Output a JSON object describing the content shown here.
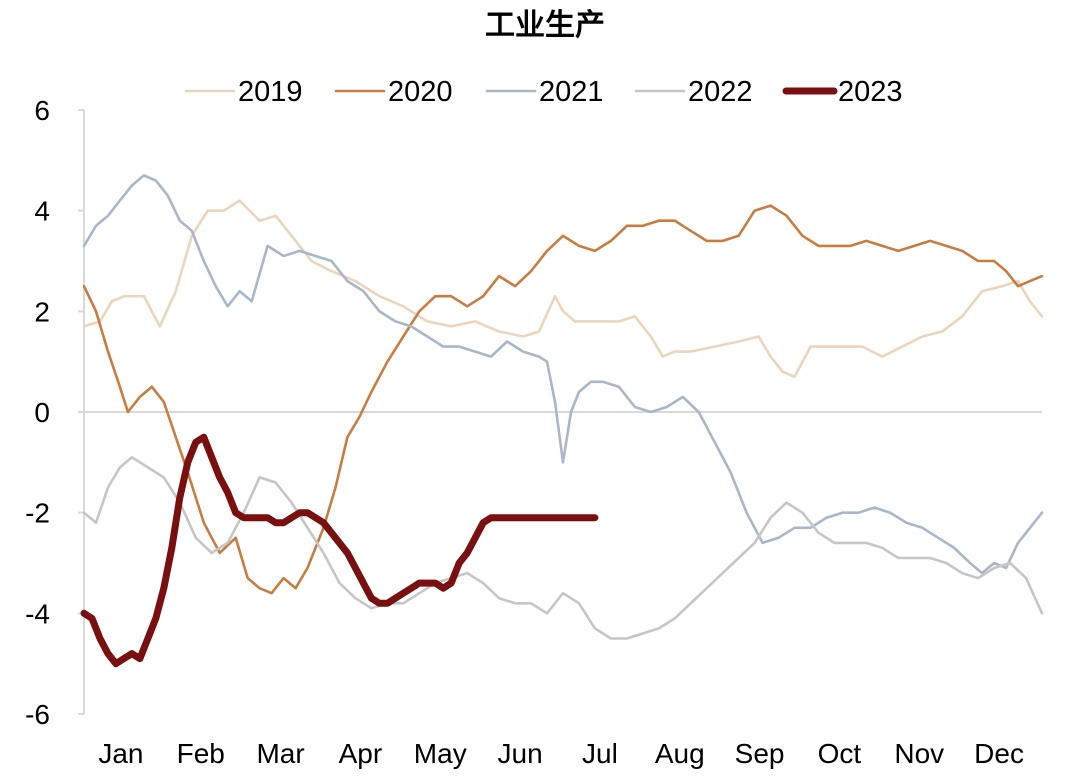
{
  "chart_data": {
    "type": "line",
    "title": "工业生产",
    "xlabel": "",
    "ylabel": "",
    "ylim": [
      -6,
      6
    ],
    "yticks": [
      6,
      4,
      2,
      0,
      -2,
      -4,
      -6
    ],
    "xlim": [
      0,
      12
    ],
    "months": [
      "Jan",
      "Feb",
      "Mar",
      "Apr",
      "May",
      "Jun",
      "Jul",
      "Aug",
      "Sep",
      "Oct",
      "Nov",
      "Dec"
    ],
    "legend_position": "top",
    "zero_line": true,
    "series": [
      {
        "name": "2019",
        "color": "#ecd5bd",
        "width": "thin",
        "x": [
          0.0,
          0.2,
          0.35,
          0.5,
          0.75,
          0.95,
          1.15,
          1.35,
          1.55,
          1.75,
          1.95,
          2.2,
          2.4,
          2.6,
          2.85,
          3.1,
          3.4,
          3.7,
          4.0,
          4.3,
          4.6,
          4.9,
          5.2,
          5.5,
          5.7,
          5.9,
          6.0,
          6.15,
          6.4,
          6.7,
          6.9,
          7.1,
          7.25,
          7.4,
          7.6,
          7.9,
          8.2,
          8.45,
          8.6,
          8.75,
          8.9,
          9.1,
          9.3,
          9.5,
          9.75,
          10.0,
          10.25,
          10.5,
          10.75,
          11.0,
          11.25,
          11.5,
          11.7,
          11.85,
          12.0
        ],
        "y": [
          1.7,
          1.8,
          2.2,
          2.3,
          2.3,
          1.7,
          2.4,
          3.5,
          4.0,
          4.0,
          4.2,
          3.8,
          3.9,
          3.5,
          3.0,
          2.8,
          2.6,
          2.3,
          2.1,
          1.8,
          1.7,
          1.8,
          1.6,
          1.5,
          1.6,
          2.3,
          2.0,
          1.8,
          1.8,
          1.8,
          1.9,
          1.5,
          1.1,
          1.2,
          1.2,
          1.3,
          1.4,
          1.5,
          1.1,
          0.8,
          0.7,
          1.3,
          1.3,
          1.3,
          1.3,
          1.1,
          1.3,
          1.5,
          1.6,
          1.9,
          2.4,
          2.5,
          2.6,
          2.2,
          1.9
        ]
      },
      {
        "name": "2020",
        "color": "#c87d40",
        "width": "thin",
        "x": [
          0.0,
          0.15,
          0.3,
          0.45,
          0.55,
          0.7,
          0.85,
          1.0,
          1.15,
          1.3,
          1.5,
          1.7,
          1.9,
          2.05,
          2.2,
          2.35,
          2.5,
          2.65,
          2.8,
          3.0,
          3.15,
          3.3,
          3.45,
          3.6,
          3.8,
          4.0,
          4.2,
          4.4,
          4.6,
          4.8,
          5.0,
          5.2,
          5.4,
          5.6,
          5.8,
          6.0,
          6.2,
          6.4,
          6.6,
          6.8,
          7.0,
          7.2,
          7.4,
          7.6,
          7.8,
          8.0,
          8.2,
          8.4,
          8.6,
          8.8,
          9.0,
          9.2,
          9.4,
          9.6,
          9.8,
          10.0,
          10.2,
          10.4,
          10.6,
          10.8,
          11.0,
          11.2,
          11.4,
          11.55,
          11.7,
          11.85,
          12.0
        ],
        "y": [
          2.5,
          2.0,
          1.2,
          0.5,
          0.0,
          0.3,
          0.5,
          0.2,
          -0.5,
          -1.2,
          -2.2,
          -2.8,
          -2.5,
          -3.3,
          -3.5,
          -3.6,
          -3.3,
          -3.5,
          -3.1,
          -2.3,
          -1.5,
          -0.5,
          -0.1,
          0.4,
          1.0,
          1.5,
          2.0,
          2.3,
          2.3,
          2.1,
          2.3,
          2.7,
          2.5,
          2.8,
          3.2,
          3.5,
          3.3,
          3.2,
          3.4,
          3.7,
          3.7,
          3.8,
          3.8,
          3.6,
          3.4,
          3.4,
          3.5,
          4.0,
          4.1,
          3.9,
          3.5,
          3.3,
          3.3,
          3.3,
          3.4,
          3.3,
          3.2,
          3.3,
          3.4,
          3.3,
          3.2,
          3.0,
          3.0,
          2.8,
          2.5,
          2.6,
          2.7
        ]
      },
      {
        "name": "2021",
        "color": "#a9b7c9",
        "width": "thin",
        "x": [
          0.0,
          0.15,
          0.3,
          0.45,
          0.6,
          0.75,
          0.9,
          1.05,
          1.2,
          1.35,
          1.5,
          1.65,
          1.8,
          1.95,
          2.1,
          2.3,
          2.5,
          2.7,
          2.9,
          3.1,
          3.3,
          3.5,
          3.7,
          3.9,
          4.1,
          4.3,
          4.5,
          4.7,
          4.9,
          5.1,
          5.3,
          5.5,
          5.7,
          5.8,
          5.9,
          6.0,
          6.1,
          6.2,
          6.35,
          6.5,
          6.7,
          6.9,
          7.1,
          7.3,
          7.5,
          7.7,
          7.9,
          8.1,
          8.3,
          8.5,
          8.7,
          8.9,
          9.1,
          9.3,
          9.5,
          9.7,
          9.9,
          10.1,
          10.3,
          10.5,
          10.7,
          10.9,
          11.1,
          11.25,
          11.4,
          11.55,
          11.7,
          11.85,
          12.0
        ],
        "y": [
          3.3,
          3.7,
          3.9,
          4.2,
          4.5,
          4.7,
          4.6,
          4.3,
          3.8,
          3.6,
          3.0,
          2.5,
          2.1,
          2.4,
          2.2,
          3.3,
          3.1,
          3.2,
          3.1,
          3.0,
          2.6,
          2.4,
          2.0,
          1.8,
          1.7,
          1.5,
          1.3,
          1.3,
          1.2,
          1.1,
          1.4,
          1.2,
          1.1,
          1.0,
          0.2,
          -1.0,
          0.0,
          0.4,
          0.6,
          0.6,
          0.5,
          0.1,
          0.0,
          0.1,
          0.3,
          0.0,
          -0.6,
          -1.2,
          -2.0,
          -2.6,
          -2.5,
          -2.3,
          -2.3,
          -2.1,
          -2.0,
          -2.0,
          -1.9,
          -2.0,
          -2.2,
          -2.3,
          -2.5,
          -2.7,
          -3.0,
          -3.2,
          -3.0,
          -3.1,
          -2.6,
          -2.3,
          -2.0
        ]
      },
      {
        "name": "2022",
        "color": "#c6c6c6",
        "width": "thin",
        "x": [
          0.0,
          0.15,
          0.3,
          0.45,
          0.6,
          0.8,
          1.0,
          1.2,
          1.4,
          1.6,
          1.8,
          2.0,
          2.2,
          2.4,
          2.6,
          2.8,
          3.0,
          3.2,
          3.4,
          3.6,
          3.8,
          4.0,
          4.2,
          4.4,
          4.6,
          4.8,
          5.0,
          5.2,
          5.4,
          5.6,
          5.8,
          6.0,
          6.2,
          6.4,
          6.6,
          6.8,
          7.0,
          7.2,
          7.4,
          7.6,
          7.8,
          8.0,
          8.2,
          8.4,
          8.6,
          8.8,
          9.0,
          9.2,
          9.4,
          9.6,
          9.8,
          10.0,
          10.2,
          10.4,
          10.6,
          10.8,
          11.0,
          11.2,
          11.4,
          11.6,
          11.8,
          12.0
        ],
        "y": [
          -2.0,
          -2.2,
          -1.5,
          -1.1,
          -0.9,
          -1.1,
          -1.3,
          -1.8,
          -2.5,
          -2.8,
          -2.6,
          -2.0,
          -1.3,
          -1.4,
          -1.8,
          -2.3,
          -2.8,
          -3.4,
          -3.7,
          -3.9,
          -3.8,
          -3.8,
          -3.6,
          -3.4,
          -3.3,
          -3.2,
          -3.4,
          -3.7,
          -3.8,
          -3.8,
          -4.0,
          -3.6,
          -3.8,
          -4.3,
          -4.5,
          -4.5,
          -4.4,
          -4.3,
          -4.1,
          -3.8,
          -3.5,
          -3.2,
          -2.9,
          -2.6,
          -2.1,
          -1.8,
          -2.0,
          -2.4,
          -2.6,
          -2.6,
          -2.6,
          -2.7,
          -2.9,
          -2.9,
          -2.9,
          -3.0,
          -3.2,
          -3.3,
          -3.1,
          -3.0,
          -3.3,
          -4.0
        ]
      },
      {
        "name": "2023",
        "color": "#7a0f0f",
        "width": "thick",
        "x": [
          0.0,
          0.1,
          0.2,
          0.3,
          0.4,
          0.5,
          0.6,
          0.7,
          0.8,
          0.9,
          1.0,
          1.1,
          1.2,
          1.3,
          1.4,
          1.5,
          1.6,
          1.7,
          1.8,
          1.9,
          2.0,
          2.1,
          2.2,
          2.3,
          2.4,
          2.5,
          2.6,
          2.7,
          2.8,
          2.9,
          3.0,
          3.1,
          3.2,
          3.3,
          3.4,
          3.5,
          3.6,
          3.7,
          3.8,
          3.9,
          4.0,
          4.1,
          4.2,
          4.3,
          4.4,
          4.5,
          4.6,
          4.7,
          4.8,
          4.9,
          5.0,
          5.1,
          5.2,
          5.3,
          5.4,
          5.5,
          5.6,
          5.7,
          5.8,
          5.9,
          6.0,
          6.1,
          6.2,
          6.3,
          6.4
        ],
        "y": [
          -4.0,
          -4.1,
          -4.5,
          -4.8,
          -5.0,
          -4.9,
          -4.8,
          -4.9,
          -4.5,
          -4.1,
          -3.5,
          -2.7,
          -1.7,
          -1.0,
          -0.6,
          -0.5,
          -0.9,
          -1.3,
          -1.6,
          -2.0,
          -2.1,
          -2.1,
          -2.1,
          -2.1,
          -2.2,
          -2.2,
          -2.1,
          -2.0,
          -2.0,
          -2.1,
          -2.2,
          -2.4,
          -2.6,
          -2.8,
          -3.1,
          -3.4,
          -3.7,
          -3.8,
          -3.8,
          -3.7,
          -3.6,
          -3.5,
          -3.4,
          -3.4,
          -3.4,
          -3.5,
          -3.4,
          -3.0,
          -2.8,
          -2.5,
          -2.2,
          -2.1,
          -2.1,
          -2.1,
          -2.1,
          -2.1,
          -2.1,
          -2.1,
          -2.1,
          -2.1,
          -2.1,
          -2.1,
          -2.1,
          -2.1,
          -2.1
        ]
      }
    ]
  }
}
